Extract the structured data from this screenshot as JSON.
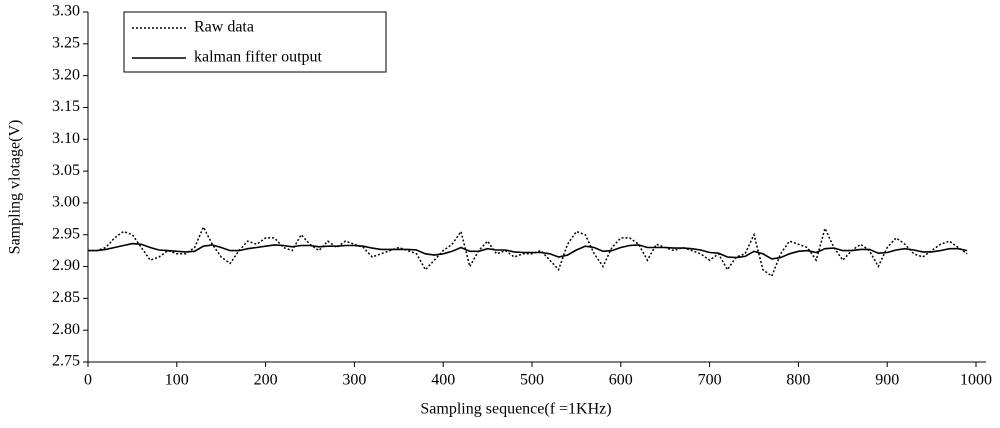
{
  "chart_data": {
    "type": "line",
    "x_label": "Sampling sequence(f =1KHz)",
    "y_label": "Sampling vlotage(V)",
    "x": [
      0,
      10,
      20,
      30,
      40,
      50,
      60,
      70,
      80,
      90,
      100,
      110,
      120,
      130,
      140,
      150,
      160,
      170,
      180,
      190,
      200,
      210,
      220,
      230,
      240,
      250,
      260,
      270,
      280,
      290,
      300,
      310,
      320,
      330,
      340,
      350,
      360,
      370,
      380,
      390,
      400,
      410,
      420,
      430,
      440,
      450,
      460,
      470,
      480,
      490,
      500,
      510,
      520,
      530,
      540,
      550,
      560,
      570,
      580,
      590,
      600,
      610,
      620,
      630,
      640,
      650,
      660,
      670,
      680,
      690,
      700,
      710,
      720,
      730,
      740,
      750,
      760,
      770,
      780,
      790,
      800,
      810,
      820,
      830,
      840,
      850,
      860,
      870,
      880,
      890,
      900,
      910,
      920,
      930,
      940,
      950,
      960,
      970,
      980,
      990
    ],
    "series": [
      {
        "name": "Raw data",
        "color": "#000000",
        "dash": "dotted",
        "values": [
          2.925,
          2.925,
          2.93,
          2.945,
          2.955,
          2.95,
          2.93,
          2.91,
          2.915,
          2.925,
          2.92,
          2.92,
          2.93,
          2.962,
          2.935,
          2.915,
          2.905,
          2.925,
          2.94,
          2.935,
          2.945,
          2.945,
          2.93,
          2.925,
          2.95,
          2.935,
          2.925,
          2.94,
          2.93,
          2.94,
          2.935,
          2.93,
          2.915,
          2.92,
          2.925,
          2.93,
          2.925,
          2.92,
          2.895,
          2.91,
          2.925,
          2.935,
          2.955,
          2.9,
          2.925,
          2.94,
          2.92,
          2.925,
          2.915,
          2.92,
          2.92,
          2.925,
          2.91,
          2.895,
          2.935,
          2.955,
          2.95,
          2.92,
          2.9,
          2.93,
          2.945,
          2.945,
          2.935,
          2.91,
          2.935,
          2.93,
          2.925,
          2.93,
          2.925,
          2.92,
          2.91,
          2.92,
          2.895,
          2.915,
          2.92,
          2.95,
          2.895,
          2.885,
          2.92,
          2.94,
          2.935,
          2.93,
          2.91,
          2.96,
          2.93,
          2.91,
          2.925,
          2.935,
          2.925,
          2.9,
          2.93,
          2.945,
          2.935,
          2.92,
          2.915,
          2.925,
          2.935,
          2.94,
          2.93,
          2.92
        ]
      },
      {
        "name": "kalman fifter output",
        "color": "#000000",
        "dash": "solid",
        "values": [
          2.925,
          2.925,
          2.927,
          2.93,
          2.933,
          2.936,
          2.935,
          2.93,
          2.926,
          2.925,
          2.924,
          2.923,
          2.924,
          2.932,
          2.934,
          2.93,
          2.925,
          2.925,
          2.928,
          2.93,
          2.932,
          2.934,
          2.933,
          2.931,
          2.933,
          2.933,
          2.931,
          2.932,
          2.932,
          2.933,
          2.933,
          2.932,
          2.929,
          2.927,
          2.927,
          2.927,
          2.927,
          2.926,
          2.92,
          2.918,
          2.92,
          2.924,
          2.93,
          2.924,
          2.924,
          2.928,
          2.926,
          2.926,
          2.923,
          2.922,
          2.922,
          2.922,
          2.92,
          2.915,
          2.918,
          2.926,
          2.932,
          2.93,
          2.924,
          2.925,
          2.93,
          2.933,
          2.934,
          2.93,
          2.93,
          2.93,
          2.929,
          2.929,
          2.928,
          2.926,
          2.922,
          2.921,
          2.915,
          2.914,
          2.916,
          2.924,
          2.92,
          2.912,
          2.914,
          2.92,
          2.924,
          2.925,
          2.922,
          2.928,
          2.929,
          2.925,
          2.925,
          2.927,
          2.927,
          2.921,
          2.922,
          2.926,
          2.928,
          2.926,
          2.923,
          2.923,
          2.925,
          2.928,
          2.928,
          2.925
        ]
      }
    ],
    "xlim": [
      0,
      1000
    ],
    "ylim": [
      2.75,
      3.3
    ],
    "xticks": [
      0,
      100,
      200,
      300,
      400,
      500,
      600,
      700,
      800,
      900,
      1000
    ],
    "yticks": [
      2.75,
      {
        "value": 2.8,
        "label": "2.80"
      },
      2.85,
      {
        "value": 2.9,
        "label": "2.90"
      },
      2.95,
      {
        "value": 3.0,
        "label": "3.00"
      },
      3.05,
      {
        "value": 3.1,
        "label": "3.10"
      },
      3.15,
      {
        "value": 3.2,
        "label": "3.20"
      },
      3.25,
      {
        "value": 3.3,
        "label": "3.30"
      }
    ],
    "legend": "upper left"
  }
}
